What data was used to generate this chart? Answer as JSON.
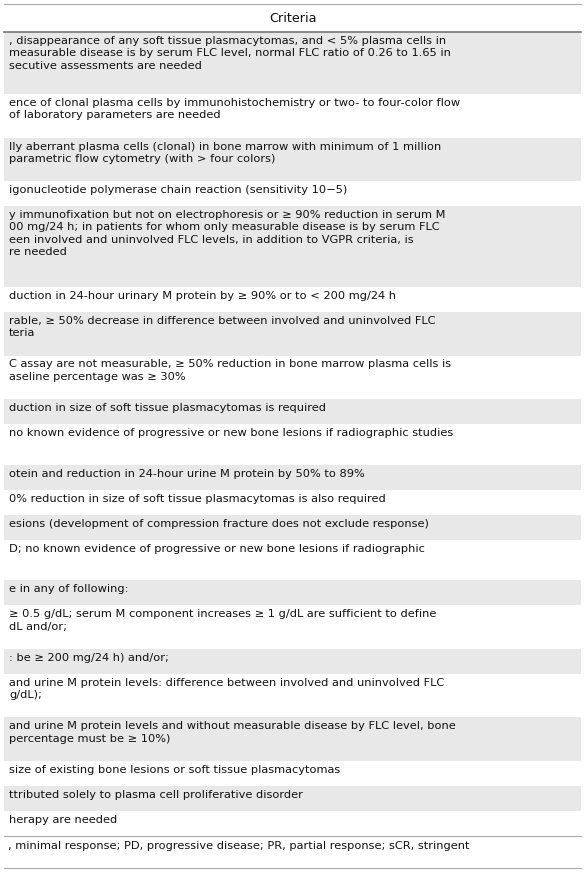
{
  "title": "Criteria",
  "background_color": "#ffffff",
  "header_bg": "#ffffff",
  "row_bg_gray": "#e8e8e8",
  "row_bg_white": "#ffffff",
  "footer_text": ", minimal response; PD, progressive disease; PR, partial response; sCR, stringent",
  "text_color": "#111111",
  "line_color": "#999999",
  "font_size": 8.2,
  "header_font_size": 9.2,
  "footer_font_size": 8.2,
  "rows": [
    {
      "text": ", disappearance of any soft tissue plasmacytomas, and < 5% plasma cells in\nmeasurable disease is by serum FLC level, normal FLC ratio of 0.26 to 1.65 in\nsecutive assessments are needed",
      "bg": "#e8e8e8",
      "nlines": 3
    },
    {
      "text": "ence of clonal plasma cells by immunohistochemistry or two- to four-color flow\nof laboratory parameters are needed",
      "bg": "#ffffff",
      "nlines": 2
    },
    {
      "text": "lly aberrant plasma cells (clonal) in bone marrow with minimum of 1 million\nparametric flow cytometry (with > four colors)",
      "bg": "#e8e8e8",
      "nlines": 2
    },
    {
      "text": "igonucleotide polymerase chain reaction (sensitivity 10−5)",
      "bg": "#ffffff",
      "nlines": 1
    },
    {
      "text": "y immunofixation but not on electrophoresis or ≥ 90% reduction in serum M\n00 mg/24 h; in patients for whom only measurable disease is by serum FLC\neen involved and uninvolved FLC levels, in addition to VGPR criteria, is\nre needed",
      "bg": "#e8e8e8",
      "nlines": 4
    },
    {
      "text": "duction in 24-hour urinary M protein by ≥ 90% or to < 200 mg/24 h",
      "bg": "#ffffff",
      "nlines": 1
    },
    {
      "text": "rable, ≥ 50% decrease in difference between involved and uninvolved FLC\nteria",
      "bg": "#e8e8e8",
      "nlines": 2
    },
    {
      "text": "C assay are not measurable, ≥ 50% reduction in bone marrow plasma cells is\naseline percentage was ≥ 30%",
      "bg": "#ffffff",
      "nlines": 2
    },
    {
      "text": "duction in size of soft tissue plasmacytomas is required",
      "bg": "#e8e8e8",
      "nlines": 1
    },
    {
      "text": "no known evidence of progressive or new bone lesions if radiographic studies",
      "bg": "#ffffff",
      "nlines": 1
    },
    {
      "text": "",
      "bg": "#ffffff",
      "nlines": 0.5
    },
    {
      "text": "otein and reduction in 24-hour urine M protein by 50% to 89%",
      "bg": "#e8e8e8",
      "nlines": 1
    },
    {
      "text": "0% reduction in size of soft tissue plasmacytomas is also required",
      "bg": "#ffffff",
      "nlines": 1
    },
    {
      "text": "esions (development of compression fracture does not exclude response)",
      "bg": "#e8e8e8",
      "nlines": 1
    },
    {
      "text": "D; no known evidence of progressive or new bone lesions if radiographic",
      "bg": "#ffffff",
      "nlines": 1
    },
    {
      "text": "",
      "bg": "#ffffff",
      "nlines": 0.5
    },
    {
      "text": "e in any of following:",
      "bg": "#e8e8e8",
      "nlines": 1
    },
    {
      "text": "≥ 0.5 g/dL; serum M component increases ≥ 1 g/dL are sufficient to define\ndL and/or;",
      "bg": "#ffffff",
      "nlines": 2
    },
    {
      "text": ": be ≥ 200 mg/24 h) and/or;",
      "bg": "#e8e8e8",
      "nlines": 1
    },
    {
      "text": "and urine M protein levels: difference between involved and uninvolved FLC\ng/dL);",
      "bg": "#ffffff",
      "nlines": 2
    },
    {
      "text": "and urine M protein levels and without measurable disease by FLC level, bone\npercentage must be ≥ 10%)",
      "bg": "#e8e8e8",
      "nlines": 2
    },
    {
      "text": "size of existing bone lesions or soft tissue plasmacytomas",
      "bg": "#ffffff",
      "nlines": 1
    },
    {
      "text": "ttributed solely to plasma cell proliferative disorder",
      "bg": "#e8e8e8",
      "nlines": 1
    },
    {
      "text": "herapy are needed",
      "bg": "#ffffff",
      "nlines": 1
    }
  ]
}
